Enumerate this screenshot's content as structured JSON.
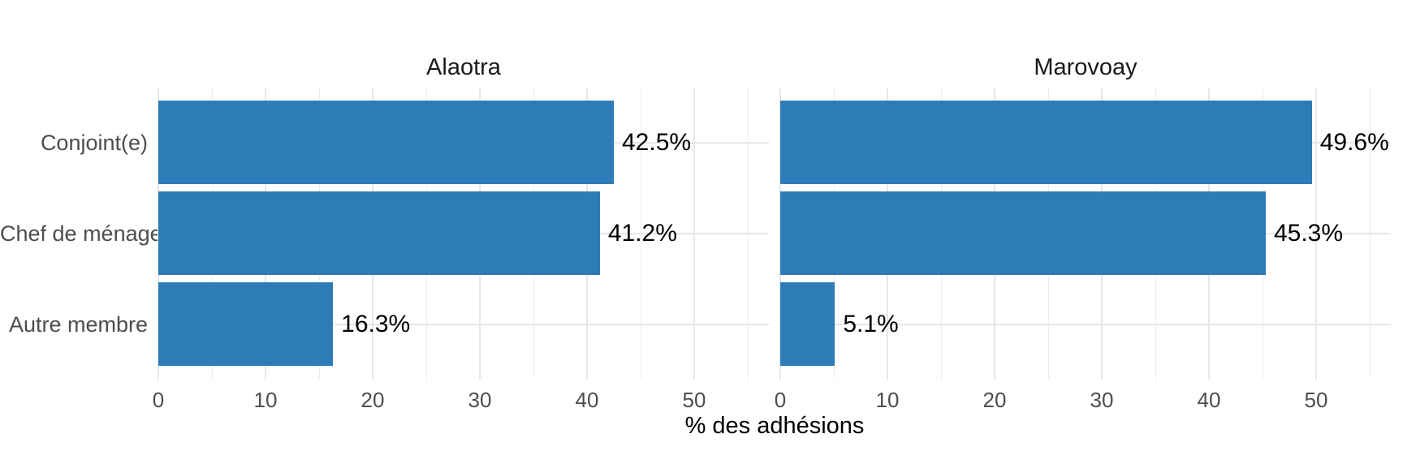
{
  "chart_data": {
    "type": "bar",
    "orientation": "horizontal",
    "title": "",
    "xlabel": "% des adhésions",
    "ylabel": "",
    "categories": [
      "Conjoint(e)",
      "Chef de ménage",
      "Autre membre"
    ],
    "series": [
      {
        "name": "Alaotra",
        "values": [
          42.5,
          41.2,
          16.3
        ],
        "labels": [
          "42.5%",
          "41.2%",
          "16.3%"
        ]
      },
      {
        "name": "Marovoay",
        "values": [
          49.6,
          45.3,
          5.1
        ],
        "labels": [
          "49.6%",
          "45.3%",
          "5.1%"
        ]
      }
    ],
    "x_ticks": [
      0,
      10,
      20,
      30,
      40,
      50
    ],
    "x_minor_ticks": [
      5,
      15,
      25,
      35,
      45,
      55
    ],
    "xlim": [
      0,
      55
    ],
    "grid": true,
    "legend": "none",
    "colors": {
      "bar": "#2E7CB7",
      "grid_major": "#E7E7E7",
      "grid_minor": "#EDEDED",
      "axis_text": "#4D4D4D",
      "value_label": "#000000",
      "strip_text": "#1A1A1A",
      "background": "#FFFFFF"
    }
  }
}
